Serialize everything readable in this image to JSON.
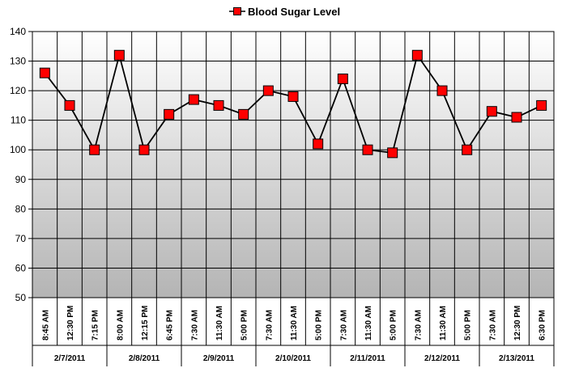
{
  "chart_data": {
    "type": "line",
    "title": "",
    "xlabel": "",
    "ylabel": "",
    "ylim": [
      50,
      140
    ],
    "yticks": [
      50,
      60,
      70,
      80,
      90,
      100,
      110,
      120,
      130,
      140
    ],
    "grid": true,
    "legend_position": "top-center",
    "series": [
      {
        "name": "Blood Sugar Level",
        "color": "#ff0000",
        "marker": "square",
        "values": [
          126,
          115,
          100,
          132,
          100,
          112,
          117,
          115,
          112,
          120,
          118,
          102,
          124,
          100,
          99,
          132,
          120,
          100,
          113,
          111,
          115
        ]
      }
    ],
    "time_labels": [
      "8:45 AM",
      "12:30 PM",
      "7:15 PM",
      "8:00 AM",
      "12:15 PM",
      "6:45 PM",
      "7:30 AM",
      "11:30 AM",
      "5:00 PM",
      "7:30 AM",
      "11:30 AM",
      "5:00 PM",
      "7:30 AM",
      "11:30 AM",
      "5:00 PM",
      "7:30 AM",
      "11:30 AM",
      "5:00 PM",
      "7:30 AM",
      "12:30 PM",
      "6:30 PM"
    ],
    "date_groups": [
      {
        "date": "2/7/2011",
        "count": 3
      },
      {
        "date": "2/8/2011",
        "count": 3
      },
      {
        "date": "2/9/2011",
        "count": 3
      },
      {
        "date": "2/10/2011",
        "count": 3
      },
      {
        "date": "2/11/2011",
        "count": 3
      },
      {
        "date": "2/12/2011",
        "count": 3
      },
      {
        "date": "2/13/2011",
        "count": 3
      }
    ]
  }
}
